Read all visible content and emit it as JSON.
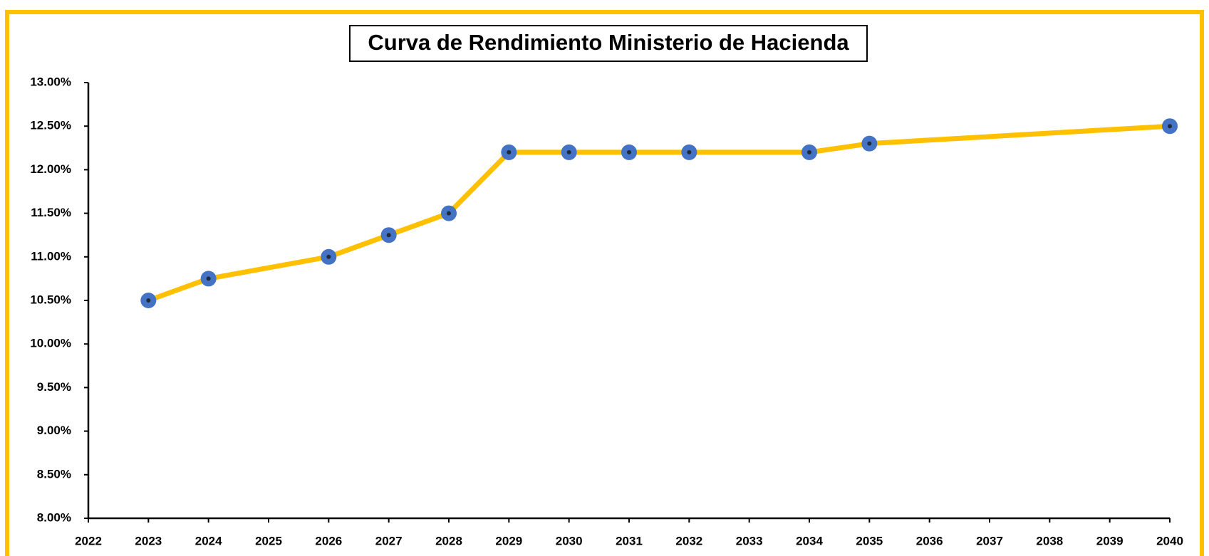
{
  "chart_data": {
    "type": "line",
    "title": "Curva de Rendimiento Ministerio de Hacienda",
    "x": [
      2023,
      2024,
      2026,
      2027,
      2028,
      2029,
      2030,
      2031,
      2032,
      2034,
      2035,
      2040
    ],
    "values": [
      10.5,
      10.75,
      11.0,
      11.25,
      11.5,
      12.2,
      12.2,
      12.2,
      12.2,
      12.2,
      12.3,
      12.5
    ],
    "color": "#ffc000",
    "marker_color": "#4472c4",
    "xlim": [
      2022,
      2040
    ],
    "xticks": [
      2022,
      2023,
      2024,
      2025,
      2026,
      2027,
      2028,
      2029,
      2030,
      2031,
      2032,
      2033,
      2034,
      2035,
      2036,
      2037,
      2038,
      2039,
      2040
    ],
    "ylim": [
      8,
      13
    ],
    "yticks": [
      {
        "value": 8,
        "label": "8.00%"
      },
      {
        "value": 8.5,
        "label": "8.50%"
      },
      {
        "value": 9,
        "label": "9.00%"
      },
      {
        "value": 9.5,
        "label": "9.50%"
      },
      {
        "value": 10,
        "label": "10.00%"
      },
      {
        "value": 10.5,
        "label": "10.50%"
      },
      {
        "value": 11,
        "label": "11.00%"
      },
      {
        "value": 11.5,
        "label": "11.50%"
      },
      {
        "value": 12,
        "label": "12.00%"
      },
      {
        "value": 12.5,
        "label": "12.50%"
      },
      {
        "value": 13,
        "label": "13.00%"
      }
    ],
    "grid": false
  }
}
